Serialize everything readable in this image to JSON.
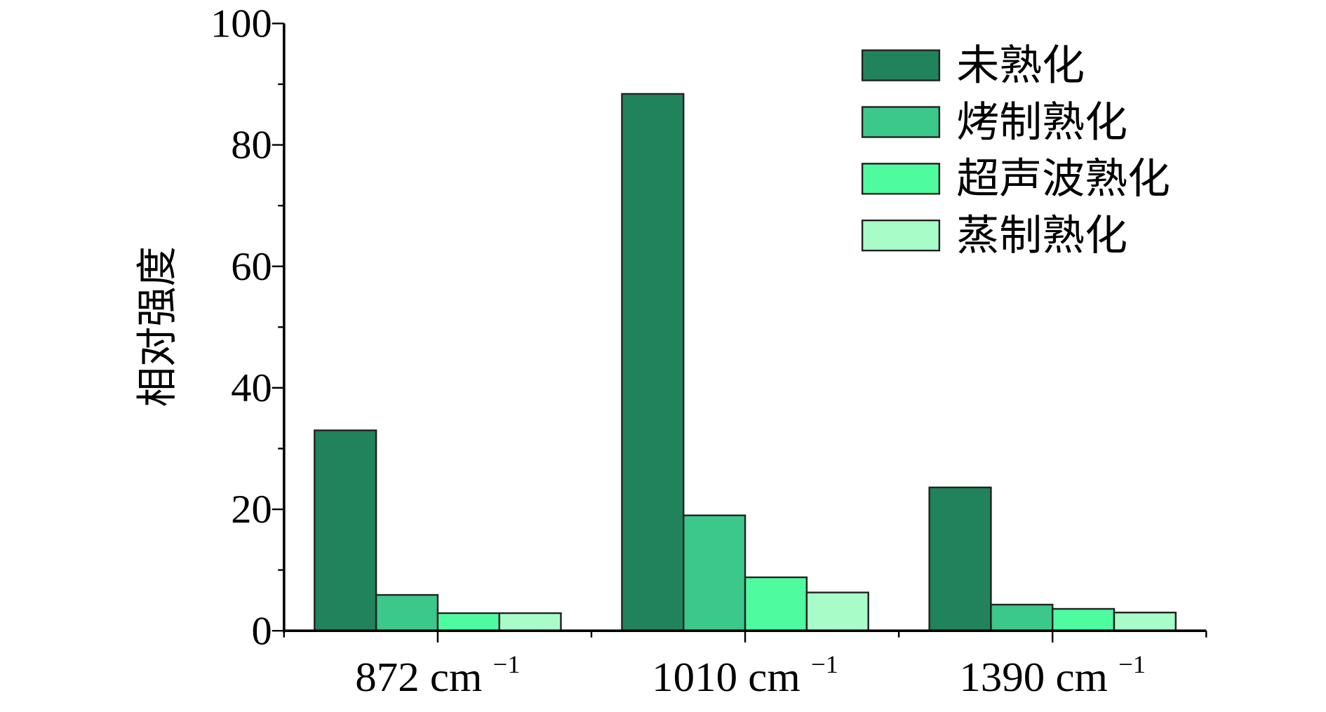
{
  "chart_data": {
    "type": "bar",
    "title": "",
    "xlabel": "",
    "ylabel": "相对强度",
    "ylim": [
      0,
      100
    ],
    "yticks": [
      0,
      20,
      40,
      60,
      80,
      100
    ],
    "categories": [
      "872 cm",
      "1010 cm",
      "1390 cm"
    ],
    "category_superscript": "−1",
    "legend_position": "top-right",
    "grid": false,
    "series": [
      {
        "name": "未熟化",
        "color": "#21835C",
        "values": [
          33.0,
          88.4,
          23.6
        ]
      },
      {
        "name": "烤制熟化",
        "color": "#3CC88A",
        "values": [
          5.9,
          19.0,
          4.3
        ]
      },
      {
        "name": "超声波熟化",
        "color": "#4FFB9F",
        "values": [
          2.9,
          8.8,
          3.6
        ]
      },
      {
        "name": "蒸制熟化",
        "color": "#A8FCC8",
        "values": [
          2.9,
          6.3,
          3.0
        ]
      }
    ]
  }
}
